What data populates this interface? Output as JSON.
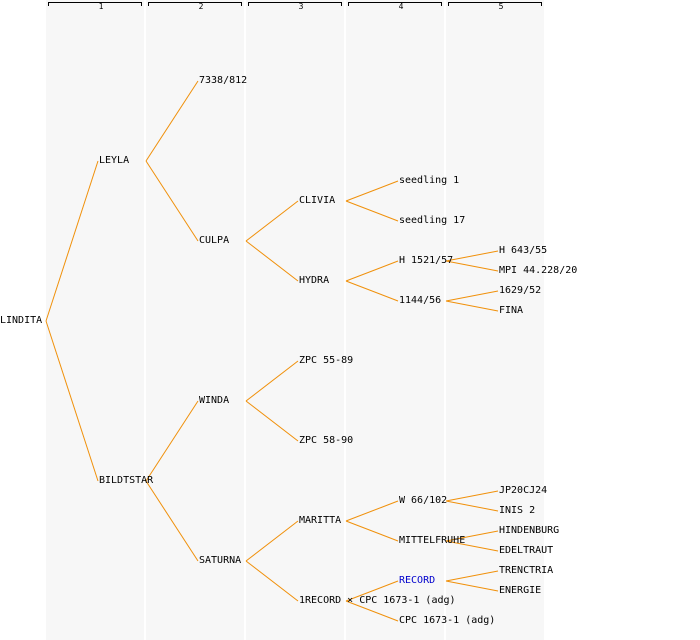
{
  "generations": [
    "1",
    "2",
    "3",
    "4",
    "5"
  ],
  "colors": {
    "edge": "#f0900a",
    "highlight": "#0000cc",
    "column": "#f7f7f7"
  },
  "nodes": {
    "lindita": "LINDITA",
    "leyla": "LEYLA",
    "bildtstar": "BILDTSTAR",
    "n7338": "7338/812",
    "culpa": "CULPA",
    "winda": "WINDA",
    "saturna": "SATURNA",
    "clivia": "CLIVIA",
    "hydra": "HYDRA",
    "zpc5589": "ZPC 55-89",
    "zpc5890": "ZPC 58-90",
    "maritta": "MARITTA",
    "record1": "1RECORD × CPC 1673-1 (adg)",
    "seedling1": "seedling 1",
    "seedling17": "seedling 17",
    "h1521": "H 1521/57",
    "n1144": "1144/56",
    "w66": "W 66/102",
    "mittelfruhe": "MITTELFRUHE",
    "record": "RECORD",
    "cpc1673": "CPC 1673-1 (adg)",
    "h643": "H 643/55",
    "mpi": "MPI 44.228/20",
    "n1629": "1629/52",
    "fina": "FINA",
    "jp20cj24": "JP20CJ24",
    "inis2": "INIS 2",
    "hindenburg": "HINDENBURG",
    "edeltraut": "EDELTRAUT",
    "trenctria": "TRENCTRIA",
    "energie": "ENERGIE"
  }
}
